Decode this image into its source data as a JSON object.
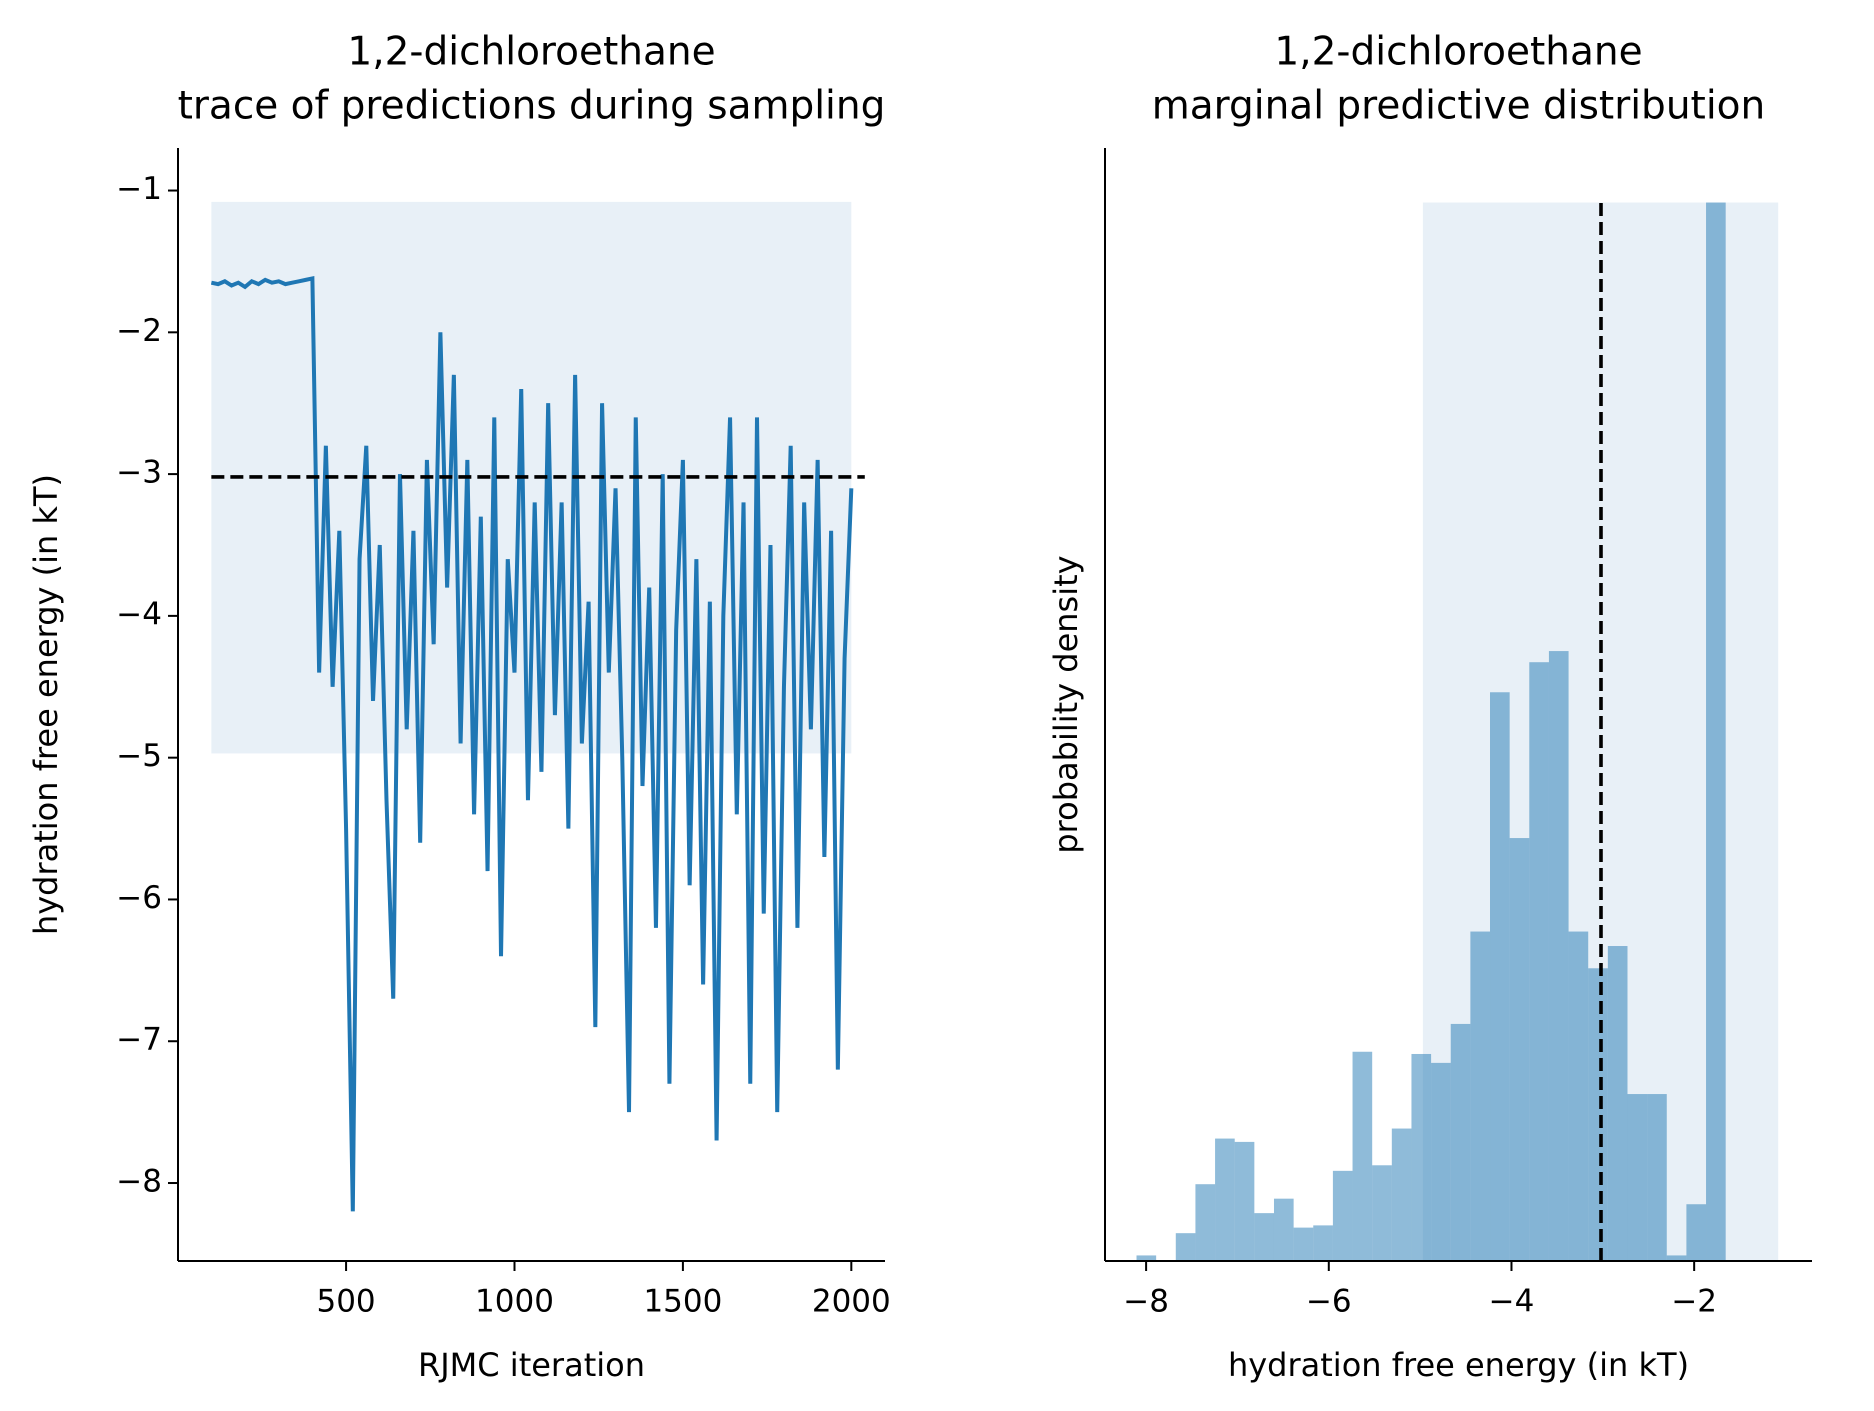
{
  "chart_data": [
    {
      "type": "line",
      "title": "1,2-dichloroethane",
      "subtitle": "trace of predictions during sampling",
      "x_label": "RJMC iteration",
      "y_label": "hydration free energy (in kT)",
      "xlim": [
        1,
        2100
      ],
      "ylim": [
        -8.55,
        -0.7
      ],
      "xticks": [
        500,
        1000,
        1500,
        2000
      ],
      "yticks": [
        {
          "value": -8,
          "label": "−8"
        },
        {
          "value": -7,
          "label": "−7"
        },
        {
          "value": -6,
          "label": "−6"
        },
        {
          "value": -5,
          "label": "−5"
        },
        {
          "value": -4,
          "label": "−4"
        },
        {
          "value": -3,
          "label": "−3"
        },
        {
          "value": -2,
          "label": "−2"
        },
        {
          "value": -1,
          "label": "−1"
        }
      ],
      "band": {
        "x": [
          100,
          2000
        ],
        "y": [
          -4.97,
          -1.08
        ],
        "color": "#e8f0f7"
      },
      "reference": {
        "axis": "y",
        "value": -3.02,
        "span": [
          100,
          2040
        ],
        "color": "#000000"
      },
      "series": [
        {
          "color": "#1f77b4",
          "x": [
            100,
            120,
            140,
            160,
            180,
            200,
            220,
            240,
            260,
            280,
            300,
            320,
            340,
            360,
            380,
            400,
            420,
            440,
            460,
            480,
            500,
            520,
            540,
            560,
            580,
            600,
            620,
            640,
            660,
            680,
            700,
            720,
            740,
            760,
            780,
            800,
            820,
            840,
            860,
            880,
            900,
            920,
            940,
            960,
            980,
            1000,
            1020,
            1040,
            1060,
            1080,
            1100,
            1120,
            1140,
            1160,
            1180,
            1200,
            1220,
            1240,
            1260,
            1280,
            1300,
            1320,
            1340,
            1360,
            1380,
            1400,
            1420,
            1440,
            1460,
            1480,
            1500,
            1520,
            1540,
            1560,
            1580,
            1600,
            1620,
            1640,
            1660,
            1680,
            1700,
            1720,
            1740,
            1760,
            1780,
            1800,
            1820,
            1840,
            1860,
            1880,
            1900,
            1920,
            1940,
            1960,
            1980,
            2000
          ],
          "values": [
            -1.65,
            -1.66,
            -1.64,
            -1.67,
            -1.65,
            -1.68,
            -1.64,
            -1.66,
            -1.63,
            -1.65,
            -1.64,
            -1.66,
            -1.65,
            -1.64,
            -1.63,
            -1.62,
            -4.4,
            -2.8,
            -4.5,
            -3.4,
            -5.5,
            -8.2,
            -3.6,
            -2.8,
            -4.6,
            -3.5,
            -5.3,
            -6.7,
            -3.0,
            -4.8,
            -3.4,
            -5.6,
            -2.9,
            -4.2,
            -2.0,
            -3.8,
            -2.3,
            -4.9,
            -2.9,
            -5.4,
            -3.3,
            -5.8,
            -2.6,
            -6.4,
            -3.6,
            -4.4,
            -2.4,
            -5.3,
            -3.2,
            -5.1,
            -2.5,
            -4.7,
            -3.2,
            -5.5,
            -2.3,
            -4.9,
            -3.9,
            -6.9,
            -2.5,
            -4.4,
            -3.1,
            -5.0,
            -7.5,
            -2.6,
            -5.2,
            -3.8,
            -6.2,
            -3.0,
            -7.3,
            -4.1,
            -2.9,
            -5.9,
            -3.6,
            -6.6,
            -3.9,
            -7.7,
            -4.0,
            -2.6,
            -5.4,
            -3.2,
            -7.3,
            -2.6,
            -6.1,
            -3.5,
            -7.5,
            -4.5,
            -2.8,
            -6.2,
            -3.2,
            -4.8,
            -2.9,
            -5.7,
            -3.4,
            -7.2,
            -4.3,
            -3.1
          ]
        }
      ]
    },
    {
      "type": "histogram",
      "title": "1,2-dichloroethane",
      "subtitle": "marginal predictive distribution",
      "x_label": "hydration free energy (in kT)",
      "y_label": "probability density",
      "xlim": [
        -8.45,
        -0.71
      ],
      "ylim": [
        0,
        1
      ],
      "xticks": [
        {
          "value": -8,
          "label": "−8"
        },
        {
          "value": -6,
          "label": "−6"
        },
        {
          "value": -4,
          "label": "−4"
        },
        {
          "value": -2,
          "label": "−2"
        }
      ],
      "band": {
        "x": [
          -4.97,
          -1.08
        ],
        "y": [
          0,
          0.951
        ],
        "color": "#e8f0f7"
      },
      "reference": {
        "axis": "x",
        "value": -3.02,
        "span": [
          0,
          0.951
        ],
        "color": "#000000"
      },
      "color": "#1f77b4",
      "bins": [
        -8.105,
        -7.89,
        -7.675,
        -7.46,
        -7.245,
        -7.03,
        -6.815,
        -6.6,
        -6.385,
        -6.17,
        -5.955,
        -5.74,
        -5.525,
        -5.31,
        -5.095,
        -4.88,
        -4.665,
        -4.45,
        -4.235,
        -4.02,
        -3.805,
        -3.59,
        -3.375,
        -3.16,
        -2.945,
        -2.73,
        -2.515,
        -2.3,
        -2.085,
        -1.87,
        -1.655
      ],
      "values": [
        0.005,
        0,
        0.025,
        0.069,
        0.11,
        0.107,
        0.043,
        0.056,
        0.03,
        0.032,
        0.081,
        0.188,
        0.086,
        0.119,
        0.186,
        0.178,
        0.213,
        0.296,
        0.511,
        0.38,
        0.538,
        0.548,
        0.296,
        0.263,
        0.283,
        0.15,
        0.15,
        0.005,
        0.051,
        0.951
      ]
    }
  ]
}
